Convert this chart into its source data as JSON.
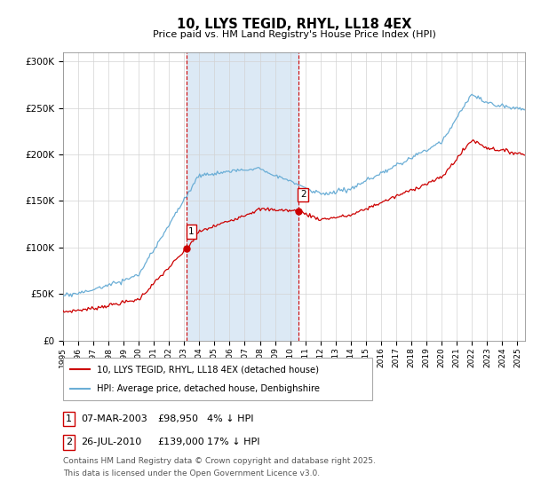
{
  "title": "10, LLYS TEGID, RHYL, LL18 4EX",
  "subtitle": "Price paid vs. HM Land Registry's House Price Index (HPI)",
  "legend_line1": "10, LLYS TEGID, RHYL, LL18 4EX (detached house)",
  "legend_line2": "HPI: Average price, detached house, Denbighshire",
  "transaction1_date": "07-MAR-2003",
  "transaction1_price": "£98,950",
  "transaction1_hpi": "4% ↓ HPI",
  "transaction2_date": "26-JUL-2010",
  "transaction2_price": "£139,000",
  "transaction2_hpi": "17% ↓ HPI",
  "footer": "Contains HM Land Registry data © Crown copyright and database right 2025.\nThis data is licensed under the Open Government Licence v3.0.",
  "hpi_color": "#6baed6",
  "price_color": "#cc0000",
  "shading_color": "#dce9f5",
  "vline_color": "#cc0000",
  "ylim": [
    0,
    310000
  ],
  "yticks": [
    0,
    50000,
    100000,
    150000,
    200000,
    250000,
    300000
  ],
  "xlim_start": 1995.0,
  "xlim_end": 2025.5,
  "transaction1_x": 2003.18,
  "transaction2_x": 2010.56,
  "transaction1_y": 98950,
  "transaction2_y": 139000
}
